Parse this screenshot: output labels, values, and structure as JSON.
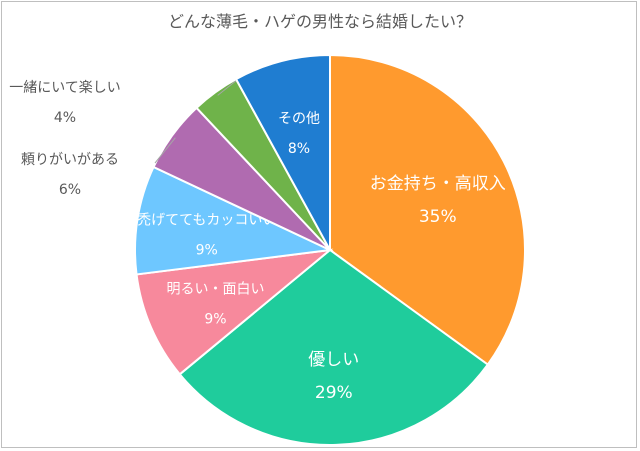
{
  "chart_data": {
    "type": "pie",
    "title": "どんな薄毛・ハゲの男性なら結婚したい？",
    "slices": [
      {
        "label": "お金持ち・高収入",
        "value": 35,
        "value_label": "35%",
        "color": "#ff9a2e"
      },
      {
        "label": "優しい",
        "value": 29,
        "value_label": "29%",
        "color": "#1fcc9c"
      },
      {
        "label": "明るい・面白い",
        "value": 9,
        "value_label": "9%",
        "color": "#f7899c"
      },
      {
        "label": "禿げててもカッコいい",
        "value": 9,
        "value_label": "9%",
        "color": "#6ec7ff"
      },
      {
        "label": "頼りがいがある",
        "value": 6,
        "value_label": "6%",
        "color": "#b06bb0"
      },
      {
        "label": "一緒にいて楽しい",
        "value": 4,
        "value_label": "4%",
        "color": "#6fb34a"
      },
      {
        "label": "その他",
        "value": 8,
        "value_label": "8%",
        "color": "#1f7dd1"
      }
    ],
    "start_angle_deg": 0,
    "direction": "clockwise"
  }
}
